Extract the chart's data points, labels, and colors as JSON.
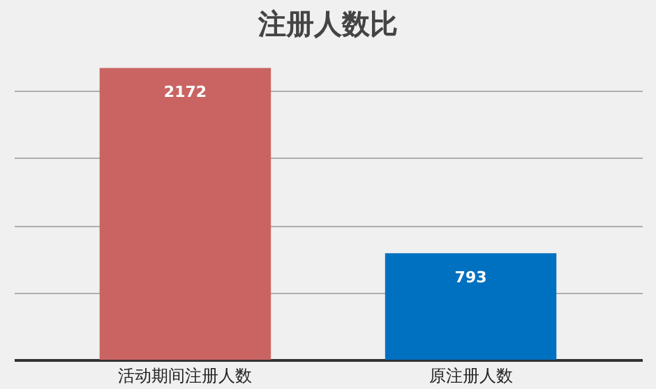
{
  "chart_data": {
    "type": "bar",
    "title": "注册人数比",
    "categories": [
      "活动期间注册人数",
      "原注册人数"
    ],
    "values": [
      2172,
      793
    ],
    "colors": [
      "#c96462",
      "#0070c0"
    ],
    "grid": "y",
    "tick_labels": "x",
    "data_labels": true
  }
}
